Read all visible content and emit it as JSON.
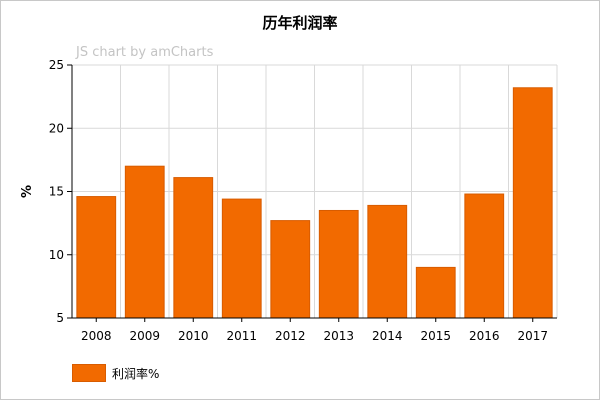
{
  "chart_data": {
    "type": "bar",
    "title": "历年利润率",
    "watermark": "JS chart by amCharts",
    "ylabel": "%",
    "xlabel": "",
    "categories": [
      "2008",
      "2009",
      "2010",
      "2011",
      "2012",
      "2013",
      "2014",
      "2015",
      "2016",
      "2017"
    ],
    "series": [
      {
        "name": "利润率%",
        "color": "#f26a00",
        "values": [
          14.6,
          17.0,
          16.1,
          14.4,
          12.7,
          13.5,
          13.9,
          9.0,
          14.8,
          23.2
        ]
      }
    ],
    "ylim": [
      5,
      25
    ],
    "yticks": [
      5,
      10,
      15,
      20,
      25
    ],
    "grid": true,
    "legend_position": "bottom-left"
  }
}
